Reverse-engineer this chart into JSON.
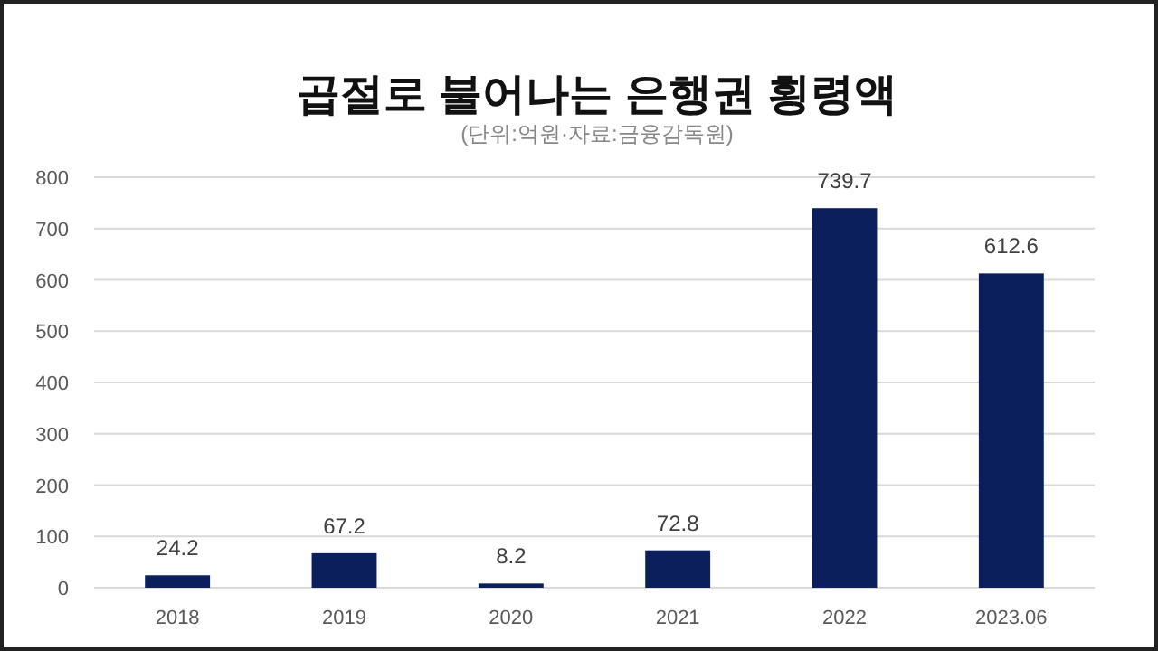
{
  "chart_data": {
    "type": "bar",
    "title": "곱절로 불어나는 은행권 횡령액",
    "subtitle": "(단위:억원·자료:금융감독원)",
    "categories": [
      "2018",
      "2019",
      "2020",
      "2021",
      "2022",
      "2023.06"
    ],
    "values": [
      24.2,
      67.2,
      8.2,
      72.8,
      739.7,
      612.6
    ],
    "color": "#0b1f5c",
    "ylim": [
      0,
      800
    ],
    "yticks": [
      0,
      100,
      200,
      300,
      400,
      500,
      600,
      700,
      800
    ],
    "grid": "y",
    "data_labels": true
  }
}
